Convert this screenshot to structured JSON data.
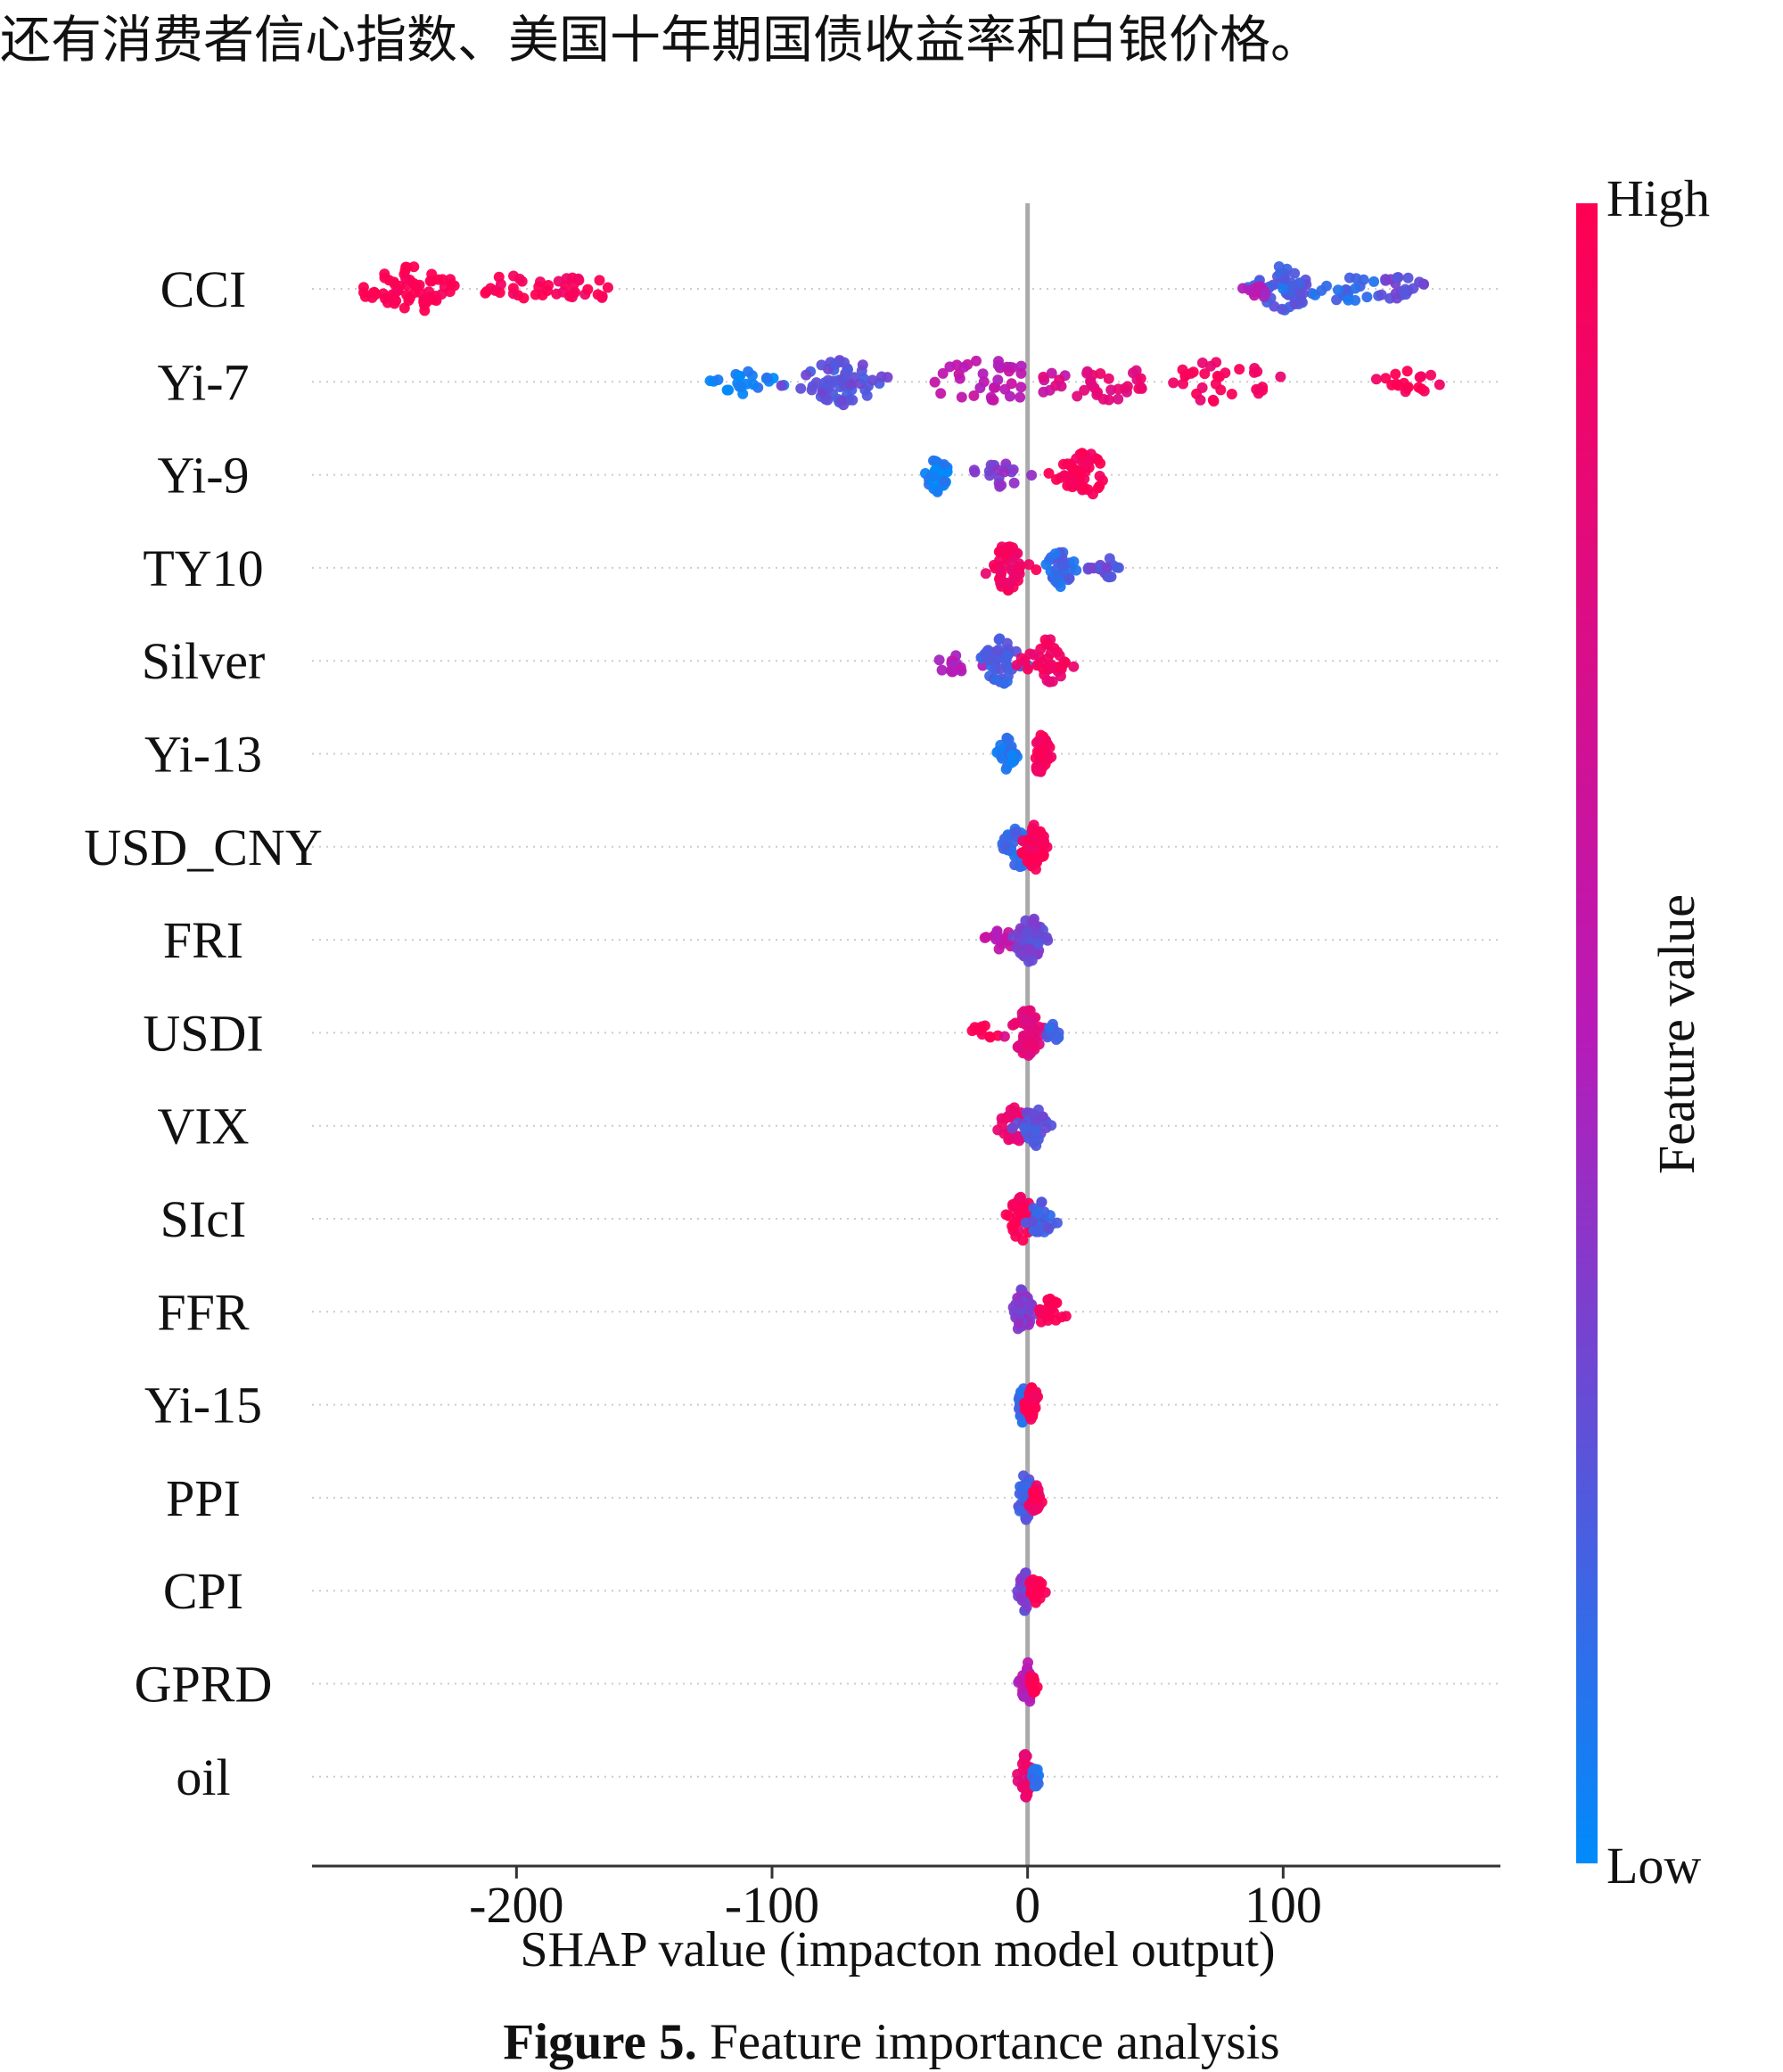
{
  "page": {
    "body_text": "还有消费者信心指数、美国十年期国债收益率和白银价格。",
    "caption_label": "Figure 5.",
    "caption_text": " Feature importance analysis"
  },
  "chart_data": {
    "type": "scatter",
    "subtype": "shap-beeswarm",
    "title": "",
    "xlabel": "SHAP value (impacton model output)",
    "ylabel": "",
    "xlim": [
      -280,
      185
    ],
    "xticks": [
      -200,
      -100,
      0,
      100
    ],
    "xtick_labels": [
      "-200",
      "-100",
      "0",
      "100"
    ],
    "features": [
      "CCI",
      "Yi-7",
      "Yi-9",
      "TY10",
      "Silver",
      "Yi-13",
      "USD_CNY",
      "FRI",
      "USDI",
      "VIX",
      "SIcI",
      "FFR",
      "Yi-15",
      "PPI",
      "CPI",
      "GPRD",
      "oil"
    ],
    "colorbar": {
      "label": "Feature value",
      "high_label": "High",
      "low_label": "Low",
      "high_color": "#ff0052",
      "mid_color": "#b81ab8",
      "low_color": "#008bfb"
    },
    "grid": false,
    "zero_line": true,
    "series": [
      {
        "name": "CCI",
        "approx_range": [
          -260,
          155
        ],
        "clusters": [
          {
            "center": -240,
            "spread": 16,
            "count": 60,
            "value": 1.0
          },
          {
            "center": -200,
            "spread": 18,
            "count": 22,
            "value": 0.98
          },
          {
            "center": -175,
            "spread": 12,
            "count": 18,
            "value": 0.95
          },
          {
            "center": 100,
            "spread": 10,
            "count": 48,
            "value": 0.2
          },
          {
            "center": 92,
            "spread": 6,
            "count": 12,
            "value": 0.5
          },
          {
            "center": 125,
            "spread": 12,
            "count": 22,
            "value": 0.15
          },
          {
            "center": 145,
            "spread": 8,
            "count": 20,
            "value": 0.3
          }
        ]
      },
      {
        "name": "Yi-7",
        "approx_range": [
          -125,
          165
        ],
        "clusters": [
          {
            "center": -112,
            "spread": 10,
            "count": 22,
            "value": 0.05
          },
          {
            "center": -72,
            "spread": 14,
            "count": 60,
            "value": 0.25
          },
          {
            "center": -15,
            "spread": 22,
            "count": 40,
            "value": 0.55
          },
          {
            "center": 30,
            "spread": 20,
            "count": 30,
            "value": 0.8
          },
          {
            "center": 75,
            "spread": 25,
            "count": 34,
            "value": 0.92
          },
          {
            "center": 148,
            "spread": 14,
            "count": 18,
            "value": 0.98
          }
        ]
      },
      {
        "name": "Yi-9",
        "approx_range": [
          -40,
          40
        ],
        "clusters": [
          {
            "center": -35,
            "spread": 4,
            "count": 30,
            "value": 0.05
          },
          {
            "center": -10,
            "spread": 8,
            "count": 18,
            "value": 0.35
          },
          {
            "center": 22,
            "spread": 8,
            "count": 50,
            "value": 0.97
          }
        ]
      },
      {
        "name": "TY10",
        "approx_range": [
          -20,
          40
        ],
        "clusters": [
          {
            "center": -8,
            "spread": 6,
            "count": 50,
            "value": 0.9
          },
          {
            "center": 12,
            "spread": 5,
            "count": 34,
            "value": 0.15
          },
          {
            "center": 30,
            "spread": 5,
            "count": 18,
            "value": 0.25
          }
        ]
      },
      {
        "name": "Silver",
        "approx_range": [
          -42,
          20
        ],
        "clusters": [
          {
            "center": -28,
            "spread": 10,
            "count": 16,
            "value": 0.5
          },
          {
            "center": -10,
            "spread": 8,
            "count": 50,
            "value": 0.2
          },
          {
            "center": 8,
            "spread": 7,
            "count": 40,
            "value": 0.9
          }
        ]
      },
      {
        "name": "Yi-13",
        "approx_range": [
          -12,
          10
        ],
        "clusters": [
          {
            "center": -8,
            "spread": 3,
            "count": 30,
            "value": 0.1
          },
          {
            "center": 5,
            "spread": 3,
            "count": 34,
            "value": 0.95
          }
        ]
      },
      {
        "name": "USD_CNY",
        "approx_range": [
          -12,
          12
        ],
        "clusters": [
          {
            "center": -4,
            "spread": 5,
            "count": 40,
            "value": 0.15
          },
          {
            "center": 3,
            "spread": 4,
            "count": 50,
            "value": 0.95
          }
        ]
      },
      {
        "name": "FRI",
        "approx_range": [
          -18,
          10
        ],
        "clusters": [
          {
            "center": -10,
            "spread": 5,
            "count": 16,
            "value": 0.55
          },
          {
            "center": 1,
            "spread": 5,
            "count": 60,
            "value": 0.3
          }
        ]
      },
      {
        "name": "USDI",
        "approx_range": [
          -22,
          13
        ],
        "clusters": [
          {
            "center": -16,
            "spread": 5,
            "count": 10,
            "value": 1.0
          },
          {
            "center": 0,
            "spread": 5,
            "count": 60,
            "value": 0.8
          },
          {
            "center": 9,
            "spread": 3,
            "count": 12,
            "value": 0.2
          }
        ]
      },
      {
        "name": "VIX",
        "approx_range": [
          -15,
          10
        ],
        "clusters": [
          {
            "center": -5,
            "spread": 5,
            "count": 30,
            "value": 0.85
          },
          {
            "center": 3,
            "spread": 4,
            "count": 40,
            "value": 0.25
          }
        ]
      },
      {
        "name": "SIcI",
        "approx_range": [
          -12,
          12
        ],
        "clusters": [
          {
            "center": -2,
            "spread": 5,
            "count": 44,
            "value": 0.95
          },
          {
            "center": 5,
            "spread": 4,
            "count": 30,
            "value": 0.2
          }
        ]
      },
      {
        "name": "FFR",
        "approx_range": [
          -6,
          18
        ],
        "clusters": [
          {
            "center": -2,
            "spread": 3,
            "count": 40,
            "value": 0.35
          },
          {
            "center": 8,
            "spread": 5,
            "count": 20,
            "value": 0.97
          }
        ]
      },
      {
        "name": "Yi-15",
        "approx_range": [
          -5,
          5
        ],
        "clusters": [
          {
            "center": -2,
            "spread": 2,
            "count": 30,
            "value": 0.15
          },
          {
            "center": 2,
            "spread": 2,
            "count": 30,
            "value": 0.95
          }
        ]
      },
      {
        "name": "PPI",
        "approx_range": [
          -6,
          7
        ],
        "clusters": [
          {
            "center": -1,
            "spread": 3,
            "count": 40,
            "value": 0.2
          },
          {
            "center": 3,
            "spread": 3,
            "count": 20,
            "value": 0.95
          }
        ]
      },
      {
        "name": "CPI",
        "approx_range": [
          -5,
          7
        ],
        "clusters": [
          {
            "center": -1,
            "spread": 2,
            "count": 36,
            "value": 0.3
          },
          {
            "center": 3,
            "spread": 3,
            "count": 18,
            "value": 1.0
          }
        ]
      },
      {
        "name": "GPRD",
        "approx_range": [
          -4,
          4
        ],
        "clusters": [
          {
            "center": 0,
            "spread": 2,
            "count": 50,
            "value": 0.5
          },
          {
            "center": 2,
            "spread": 2,
            "count": 14,
            "value": 1.0
          }
        ]
      },
      {
        "name": "oil",
        "approx_range": [
          -4,
          5
        ],
        "clusters": [
          {
            "center": -1,
            "spread": 2,
            "count": 40,
            "value": 0.85
          },
          {
            "center": 3,
            "spread": 2,
            "count": 14,
            "value": 0.15
          }
        ]
      }
    ]
  }
}
